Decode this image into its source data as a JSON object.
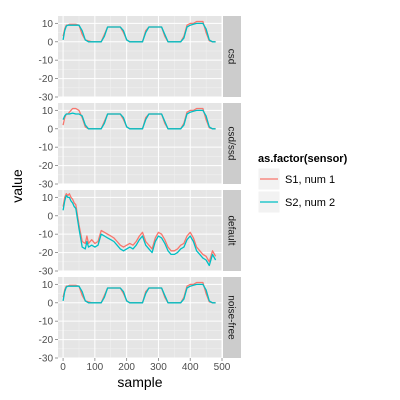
{
  "chart_data": {
    "type": "line",
    "xlabel": "sample",
    "ylabel": "value",
    "xlim": [
      -16,
      500
    ],
    "ylim": [
      -30,
      14
    ],
    "x_ticks": [
      0,
      100,
      200,
      300,
      400,
      500
    ],
    "y_ticks": [
      -30,
      -20,
      -10,
      0,
      10
    ],
    "legend": {
      "title": "as.factor(sensor)",
      "placement": "right",
      "entries": [
        {
          "label": "S1, num 1",
          "color": "#F8766D"
        },
        {
          "label": "S2, num 2",
          "color": "#00BFC4"
        }
      ]
    },
    "series_colors": {
      "S1": "#F8766D",
      "S2": "#00BFC4"
    },
    "panels": [
      {
        "strip": "csd",
        "series": [
          {
            "name": "S1, num 1",
            "x": [
              0,
              5,
              10,
              15,
              20,
              30,
              40,
              50,
              60,
              70,
              80,
              90,
              100,
              110,
              120,
              130,
              140,
              150,
              160,
              170,
              180,
              190,
              200,
              210,
              220,
              230,
              240,
              250,
              260,
              270,
              280,
              290,
              300,
              310,
              320,
              330,
              340,
              350,
              360,
              370,
              380,
              390,
              400,
              410,
              420,
              430,
              440,
              450,
              460,
              470,
              480
            ],
            "y": [
              3,
              7,
              9,
              9,
              9.5,
              9.5,
              9.5,
              9,
              4,
              1,
              0.5,
              0,
              0,
              0,
              0,
              4,
              8,
              8,
              8,
              8,
              8,
              5,
              1,
              0,
              0,
              0,
              0,
              0,
              6,
              8,
              8,
              8,
              8,
              8,
              3,
              0,
              0,
              0,
              0,
              0,
              3,
              9,
              10,
              10,
              11,
              11,
              11,
              5,
              0.5,
              0,
              0
            ]
          },
          {
            "name": "S2, num 2",
            "x": [
              0,
              5,
              10,
              15,
              20,
              30,
              40,
              50,
              60,
              70,
              80,
              90,
              100,
              110,
              120,
              130,
              140,
              150,
              160,
              170,
              180,
              190,
              200,
              210,
              220,
              230,
              240,
              250,
              260,
              270,
              280,
              290,
              300,
              310,
              320,
              330,
              340,
              350,
              360,
              370,
              380,
              390,
              400,
              410,
              420,
              430,
              440,
              450,
              460,
              470,
              480
            ],
            "y": [
              1,
              6,
              8.5,
              9,
              9,
              9,
              9,
              9,
              6,
              1,
              0,
              0,
              0,
              0,
              0,
              3,
              8,
              8,
              8,
              8,
              8,
              6,
              1,
              0,
              0,
              0,
              0,
              0,
              5,
              8,
              8,
              8,
              8,
              8,
              4,
              0,
              0,
              0,
              0,
              0,
              2,
              8,
              9,
              9.5,
              10,
              10,
              10,
              7,
              1,
              0,
              0
            ]
          }
        ]
      },
      {
        "strip": "csd/ssd",
        "series": [
          {
            "name": "S1, num 1",
            "x": [
              0,
              5,
              10,
              15,
              20,
              30,
              40,
              50,
              60,
              70,
              80,
              90,
              100,
              110,
              120,
              130,
              140,
              150,
              160,
              170,
              180,
              190,
              200,
              210,
              220,
              230,
              240,
              250,
              260,
              270,
              280,
              290,
              300,
              310,
              320,
              330,
              340,
              350,
              360,
              370,
              380,
              390,
              400,
              410,
              420,
              430,
              440,
              450,
              460,
              470,
              480
            ],
            "y": [
              2,
              6,
              8,
              8,
              9,
              11,
              11,
              10,
              6,
              1,
              0,
              0,
              0,
              0,
              0,
              4,
              8,
              8,
              8,
              8,
              8,
              5,
              1,
              0,
              0,
              0,
              0,
              0,
              6,
              8,
              8,
              8,
              8,
              8,
              3,
              0,
              0,
              0,
              0,
              0,
              3,
              9,
              10,
              10,
              11,
              11,
              11,
              5,
              0.5,
              0,
              0
            ]
          },
          {
            "name": "S2, num 2",
            "x": [
              0,
              5,
              10,
              15,
              20,
              30,
              40,
              50,
              60,
              70,
              80,
              90,
              100,
              110,
              120,
              130,
              140,
              150,
              160,
              170,
              180,
              190,
              200,
              210,
              220,
              230,
              240,
              250,
              260,
              270,
              280,
              290,
              300,
              310,
              320,
              330,
              340,
              350,
              360,
              370,
              380,
              390,
              400,
              410,
              420,
              430,
              440,
              450,
              460,
              470,
              480
            ],
            "y": [
              5,
              7,
              8,
              8,
              8,
              8.5,
              8,
              8,
              7,
              2,
              0,
              0,
              0,
              0,
              0,
              3,
              8,
              8,
              8,
              8,
              8,
              6,
              1,
              0,
              0,
              0,
              0,
              0,
              5,
              8,
              8,
              8,
              8,
              8,
              4,
              0,
              0,
              0,
              0,
              0,
              2,
              8,
              9,
              9.5,
              10,
              10,
              10,
              7,
              1,
              0,
              0
            ]
          }
        ]
      },
      {
        "strip": "default",
        "series": [
          {
            "name": "S1, num 1",
            "x": [
              0,
              5,
              10,
              15,
              20,
              25,
              30,
              35,
              40,
              50,
              60,
              70,
              75,
              80,
              90,
              100,
              110,
              120,
              130,
              140,
              150,
              160,
              170,
              180,
              190,
              200,
              210,
              220,
              230,
              240,
              250,
              260,
              270,
              280,
              290,
              300,
              310,
              320,
              330,
              340,
              350,
              360,
              370,
              380,
              390,
              400,
              410,
              420,
              430,
              440,
              450,
              460,
              470,
              480
            ],
            "y": [
              5,
              10,
              12,
              11,
              12,
              10,
              9,
              7,
              6,
              -5,
              -14,
              -15,
              -11,
              -15,
              -13,
              -15,
              -14,
              -8,
              -9,
              -10,
              -11,
              -12,
              -14,
              -16,
              -17,
              -16,
              -15,
              -16,
              -14,
              -11,
              -9,
              -14,
              -16,
              -18,
              -12,
              -9,
              -10,
              -13,
              -17,
              -19,
              -19,
              -18,
              -16,
              -15,
              -11,
              -9,
              -12,
              -17,
              -19,
              -21,
              -22,
              -25,
              -19,
              -22
            ]
          },
          {
            "name": "S2, num 2",
            "x": [
              0,
              5,
              10,
              15,
              20,
              25,
              30,
              35,
              40,
              50,
              60,
              70,
              75,
              80,
              90,
              100,
              110,
              120,
              130,
              140,
              150,
              160,
              170,
              180,
              190,
              200,
              210,
              220,
              230,
              240,
              250,
              260,
              270,
              280,
              290,
              300,
              310,
              320,
              330,
              340,
              350,
              360,
              370,
              380,
              390,
              400,
              410,
              420,
              430,
              440,
              450,
              460,
              470,
              480
            ],
            "y": [
              3,
              8,
              11,
              10,
              10,
              8,
              7,
              5,
              4,
              -7,
              -17,
              -18,
              -14,
              -17,
              -16,
              -17,
              -16,
              -10,
              -11,
              -12,
              -13,
              -14,
              -16,
              -18,
              -19,
              -18,
              -17,
              -18,
              -16,
              -13,
              -11,
              -16,
              -18,
              -20,
              -14,
              -11,
              -12,
              -15,
              -19,
              -21,
              -21,
              -20,
              -18,
              -17,
              -13,
              -11,
              -14,
              -19,
              -21,
              -23,
              -24,
              -27,
              -21,
              -24
            ]
          }
        ]
      },
      {
        "strip": "noise-free",
        "series": [
          {
            "name": "S1, num 1",
            "x": [
              0,
              5,
              10,
              15,
              20,
              30,
              40,
              50,
              60,
              70,
              80,
              90,
              100,
              110,
              120,
              130,
              140,
              150,
              160,
              170,
              180,
              190,
              200,
              210,
              220,
              230,
              240,
              250,
              260,
              270,
              280,
              290,
              300,
              310,
              320,
              330,
              340,
              350,
              360,
              370,
              380,
              390,
              400,
              410,
              420,
              430,
              440,
              450,
              460,
              470,
              480
            ],
            "y": [
              3,
              7,
              9,
              9,
              9.5,
              9.5,
              9.5,
              9,
              4,
              1,
              0.5,
              0,
              0,
              0,
              0,
              4,
              8,
              8,
              8,
              8,
              8,
              5,
              1,
              0,
              0,
              0,
              0,
              0,
              6,
              8,
              8,
              8,
              8,
              8,
              3,
              0,
              0,
              0,
              0,
              0,
              3,
              9,
              10,
              10,
              11,
              11,
              11,
              5,
              0.5,
              0,
              0
            ]
          },
          {
            "name": "S2, num 2",
            "x": [
              0,
              5,
              10,
              15,
              20,
              30,
              40,
              50,
              60,
              70,
              80,
              90,
              100,
              110,
              120,
              130,
              140,
              150,
              160,
              170,
              180,
              190,
              200,
              210,
              220,
              230,
              240,
              250,
              260,
              270,
              280,
              290,
              300,
              310,
              320,
              330,
              340,
              350,
              360,
              370,
              380,
              390,
              400,
              410,
              420,
              430,
              440,
              450,
              460,
              470,
              480
            ],
            "y": [
              1,
              6,
              8.5,
              9,
              9,
              9,
              9,
              9,
              6,
              1,
              0,
              0,
              0,
              0,
              0,
              3,
              8,
              8,
              8,
              8,
              8,
              6,
              1,
              0,
              0,
              0,
              0,
              0,
              5,
              8,
              8,
              8,
              8,
              8,
              4,
              0,
              0,
              0,
              0,
              0,
              2,
              8,
              9,
              9.5,
              10,
              10,
              10,
              7,
              1,
              0,
              0
            ]
          }
        ]
      }
    ]
  }
}
